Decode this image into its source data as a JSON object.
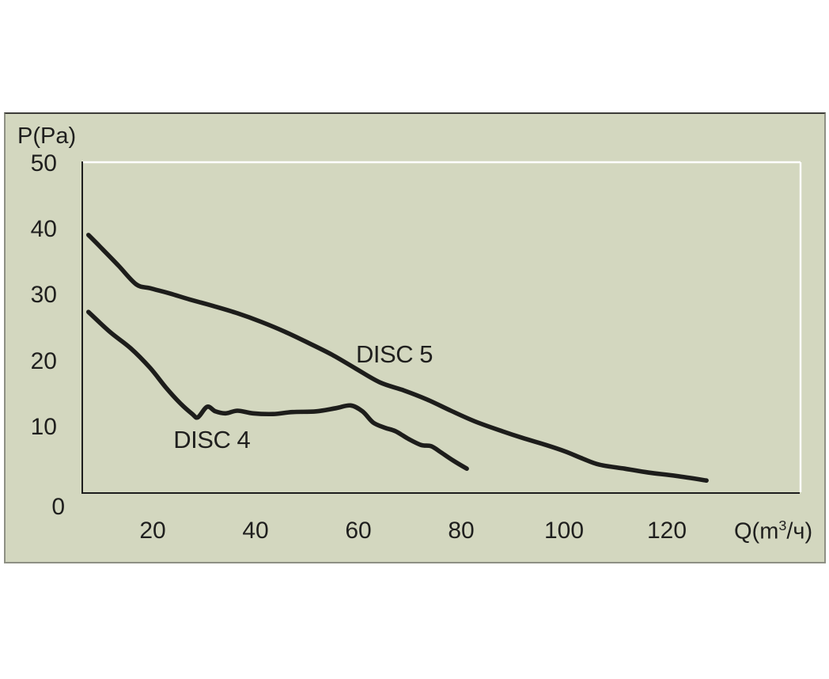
{
  "colors": {
    "page_bg": "#ffffff",
    "panel_bg": "#d3d7bf",
    "panel_border": "#8e9084",
    "panel_border_top": "#3c3c38",
    "axis_line": "#1c1c1c",
    "plot_frame_white": "#ffffff",
    "curve": "#1d1d1b",
    "text": "#1f1f1e"
  },
  "axes": {
    "y_title": "P(Pa)",
    "x_title_pre": "Q(m",
    "x_title_sup": "3",
    "x_title_post": "/ч)",
    "y_ticks": [
      50,
      40,
      30,
      20,
      10,
      0
    ],
    "x_ticks": [
      20,
      40,
      60,
      80,
      100,
      120
    ]
  },
  "chart_data": {
    "type": "line",
    "title": "",
    "xlabel": "Q(m3/ч)",
    "ylabel": "P(Pa)",
    "x_tick_labels": [
      20,
      40,
      60,
      80,
      100,
      120
    ],
    "y_tick_labels": [
      50,
      40,
      30,
      20,
      10,
      0
    ],
    "xlim": [
      6.3,
      146
    ],
    "ylim": [
      0,
      50
    ],
    "grid": "off (single white frame line at top P=50 and at right edge)",
    "legend": "inline labels next to curves",
    "series": [
      {
        "name": "DISC 5",
        "label_anchor": {
          "q": 67.0,
          "p": 20.9
        },
        "points": [
          [
            7.5,
            39.2
          ],
          [
            10.3,
            37.0
          ],
          [
            13.4,
            34.5
          ],
          [
            16.8,
            31.7
          ],
          [
            19.5,
            31.1
          ],
          [
            23.4,
            30.3
          ],
          [
            27.2,
            29.4
          ],
          [
            31.8,
            28.4
          ],
          [
            36.5,
            27.3
          ],
          [
            41.1,
            26.0
          ],
          [
            45.7,
            24.5
          ],
          [
            50.3,
            22.8
          ],
          [
            54.9,
            21.0
          ],
          [
            59.5,
            18.9
          ],
          [
            64.2,
            16.8
          ],
          [
            68.8,
            15.6
          ],
          [
            73.4,
            14.2
          ],
          [
            78.0,
            12.5
          ],
          [
            82.6,
            10.9
          ],
          [
            87.2,
            9.6
          ],
          [
            91.8,
            8.4
          ],
          [
            96.5,
            7.3
          ],
          [
            100.3,
            6.3
          ],
          [
            103.7,
            5.2
          ],
          [
            106.9,
            4.3
          ],
          [
            111.8,
            3.7
          ],
          [
            116.5,
            3.1
          ],
          [
            121.8,
            2.6
          ],
          [
            127.7,
            1.9
          ]
        ]
      },
      {
        "name": "DISC 4",
        "label_anchor": {
          "q": 31.5,
          "p": 7.9
        },
        "points": [
          [
            7.5,
            27.5
          ],
          [
            11.8,
            24.4
          ],
          [
            15.7,
            22.0
          ],
          [
            19.5,
            19.0
          ],
          [
            22.6,
            16.0
          ],
          [
            25.4,
            13.6
          ],
          [
            27.7,
            12.0
          ],
          [
            28.8,
            11.5
          ],
          [
            30.6,
            13.1
          ],
          [
            32.2,
            12.4
          ],
          [
            34.2,
            12.1
          ],
          [
            36.5,
            12.5
          ],
          [
            39.5,
            12.1
          ],
          [
            43.4,
            12.0
          ],
          [
            47.2,
            12.3
          ],
          [
            51.8,
            12.4
          ],
          [
            55.7,
            12.9
          ],
          [
            58.5,
            13.3
          ],
          [
            60.8,
            12.4
          ],
          [
            62.9,
            10.7
          ],
          [
            65.2,
            9.9
          ],
          [
            67.2,
            9.4
          ],
          [
            69.8,
            8.2
          ],
          [
            72.2,
            7.3
          ],
          [
            74.2,
            7.1
          ],
          [
            76.2,
            6.1
          ],
          [
            78.5,
            4.9
          ],
          [
            81.1,
            3.7
          ]
        ]
      }
    ]
  }
}
